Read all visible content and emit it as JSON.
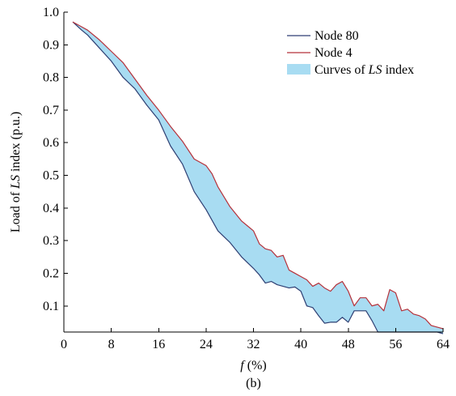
{
  "chart_data": {
    "type": "area",
    "xlabel": {
      "pre": "",
      "italic": "f",
      "post": " (%)"
    },
    "ylabel": {
      "pre": "Load of ",
      "italic": "LS",
      "post": " index (p.u.)"
    },
    "caption": "(b)",
    "xlim": [
      0,
      64
    ],
    "ylim": [
      0.02,
      1.0
    ],
    "x_ticks": [
      0,
      8,
      16,
      24,
      32,
      40,
      48,
      56,
      64
    ],
    "y_ticks": [
      0.1,
      0.2,
      0.3,
      0.4,
      0.5,
      0.6,
      0.7,
      0.8,
      0.9,
      1.0
    ],
    "x_tick_labels": [
      "0",
      "8",
      "16",
      "24",
      "32",
      "40",
      "48",
      "56",
      "64"
    ],
    "y_tick_labels": [
      "0.1",
      "0.2",
      "0.3",
      "0.4",
      "0.5",
      "0.6",
      "0.7",
      "0.8",
      "0.9",
      "1.0"
    ],
    "legend_position": "top-right",
    "legend": [
      {
        "kind": "line",
        "color": "#2e3f73",
        "parts": [
          {
            "t": "Node 80",
            "i": false
          }
        ]
      },
      {
        "kind": "line",
        "color": "#b5313a",
        "parts": [
          {
            "t": "Node 4",
            "i": false
          }
        ]
      },
      {
        "kind": "fill",
        "color": "#a8dcf2",
        "parts": [
          {
            "t": "Curves of ",
            "i": false
          },
          {
            "t": "LS",
            "i": true
          },
          {
            "t": " index",
            "i": false
          }
        ]
      }
    ],
    "series": [
      {
        "name": "Node 80",
        "color": "#2e3f73",
        "x": [
          1.5,
          3,
          4,
          6,
          8,
          10,
          12,
          14,
          16,
          18,
          20,
          22,
          24,
          26,
          28,
          30,
          32,
          33,
          34,
          35,
          36,
          37,
          38,
          39,
          40,
          41,
          42,
          43,
          44,
          45,
          46,
          47,
          48,
          49,
          50,
          51,
          52,
          53,
          54,
          55,
          56,
          57,
          58,
          59,
          60,
          61,
          62,
          63,
          64
        ],
        "y": [
          0.97,
          0.945,
          0.93,
          0.89,
          0.85,
          0.8,
          0.765,
          0.715,
          0.67,
          0.59,
          0.535,
          0.45,
          0.395,
          0.33,
          0.295,
          0.25,
          0.215,
          0.195,
          0.17,
          0.175,
          0.165,
          0.16,
          0.155,
          0.158,
          0.145,
          0.1,
          0.095,
          0.07,
          0.047,
          0.05,
          0.05,
          0.065,
          0.05,
          0.085,
          0.085,
          0.085,
          0.055,
          0.02,
          0.02,
          0.02,
          0.02,
          0.02,
          0.02,
          0.02,
          0.02,
          0.02,
          0.02,
          0.02,
          0.015
        ]
      },
      {
        "name": "Node 4",
        "color": "#b5313a",
        "x": [
          1.5,
          3,
          4,
          6,
          8,
          10,
          12,
          14,
          16,
          18,
          20,
          22,
          24,
          25,
          26,
          28,
          30,
          31,
          32,
          33,
          34,
          35,
          36,
          37,
          38,
          39,
          40,
          41,
          42,
          43,
          44,
          45,
          46,
          47,
          48,
          49,
          50,
          51,
          52,
          53,
          54,
          55,
          56,
          57,
          58,
          59,
          60,
          61,
          62,
          63,
          64
        ],
        "y": [
          0.97,
          0.955,
          0.945,
          0.915,
          0.88,
          0.845,
          0.795,
          0.745,
          0.7,
          0.65,
          0.605,
          0.55,
          0.53,
          0.505,
          0.465,
          0.405,
          0.36,
          0.345,
          0.33,
          0.29,
          0.275,
          0.27,
          0.25,
          0.255,
          0.21,
          0.2,
          0.19,
          0.18,
          0.16,
          0.17,
          0.155,
          0.145,
          0.165,
          0.175,
          0.145,
          0.1,
          0.125,
          0.125,
          0.1,
          0.105,
          0.085,
          0.15,
          0.14,
          0.085,
          0.09,
          0.075,
          0.07,
          0.06,
          0.04,
          0.035,
          0.03
        ]
      }
    ],
    "band": {
      "name": "Curves of LS index",
      "between": [
        "Node 80",
        "Node 4"
      ],
      "color": "#a8dcf2"
    }
  }
}
